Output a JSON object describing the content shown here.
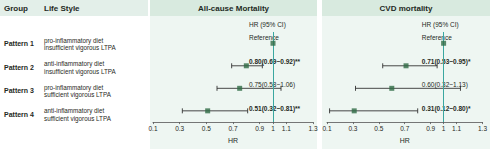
{
  "table": {
    "headers": [
      "Group",
      "Life Style"
    ],
    "rows": [
      [
        "Pattern 1",
        [
          "pro-inflammatory diet",
          "insufficient vigorous LTPA"
        ]
      ],
      [
        "Pattern 2",
        [
          "anti-inflammatory diet",
          "insufficient vigorous LTPA"
        ]
      ],
      [
        "Pattern 3",
        [
          "pro-inflammatory diet",
          "sufficient vigorous LTPA"
        ]
      ],
      [
        "Pattern 4",
        [
          "anti-inflammatory diet",
          "sufficient vigorous LTPA"
        ]
      ]
    ]
  },
  "chart_data": [
    {
      "type": "forest",
      "title": "All-cause Mortality",
      "column_header": "HR (95% CI)",
      "values": [
        1,
        0.8,
        0.75,
        0.51
      ],
      "value_labels": [
        "Reference",
        "0.80(0.69~0.92)**",
        "0.75(0.58~1.06)",
        "0.51(0.32~0.81)**"
      ],
      "error_low": [
        null,
        0.69,
        0.58,
        0.32
      ],
      "error_high": [
        null,
        0.92,
        1.06,
        0.81
      ],
      "reference_line": 1,
      "xlabel": "HR",
      "xlim": [
        0.1,
        1.3
      ],
      "xticks": [
        0.1,
        0.3,
        0.5,
        0.7,
        0.9,
        1,
        1.1,
        1.3
      ],
      "color": "#2f6b45",
      "marker": "square",
      "grid": false
    },
    {
      "type": "forest",
      "title": "CVD mortality",
      "column_header": "HR (95% CI)",
      "values": [
        1,
        0.71,
        0.6,
        0.31
      ],
      "value_labels": [
        "Reference",
        "0.71(0.53~0.95)*",
        "0.60(0.32~1.13)",
        "0.31(0.12~0.80)*"
      ],
      "error_low": [
        null,
        0.53,
        0.32,
        0.12
      ],
      "error_high": [
        null,
        0.95,
        1.13,
        0.8
      ],
      "reference_line": 1,
      "xlabel": "HR",
      "xlim": [
        0.1,
        1.3
      ],
      "xticks": [
        0.1,
        0.3,
        0.5,
        0.7,
        0.9,
        1,
        1.1,
        1.3
      ],
      "color": "#2f6b45",
      "marker": "square",
      "grid": false
    }
  ]
}
